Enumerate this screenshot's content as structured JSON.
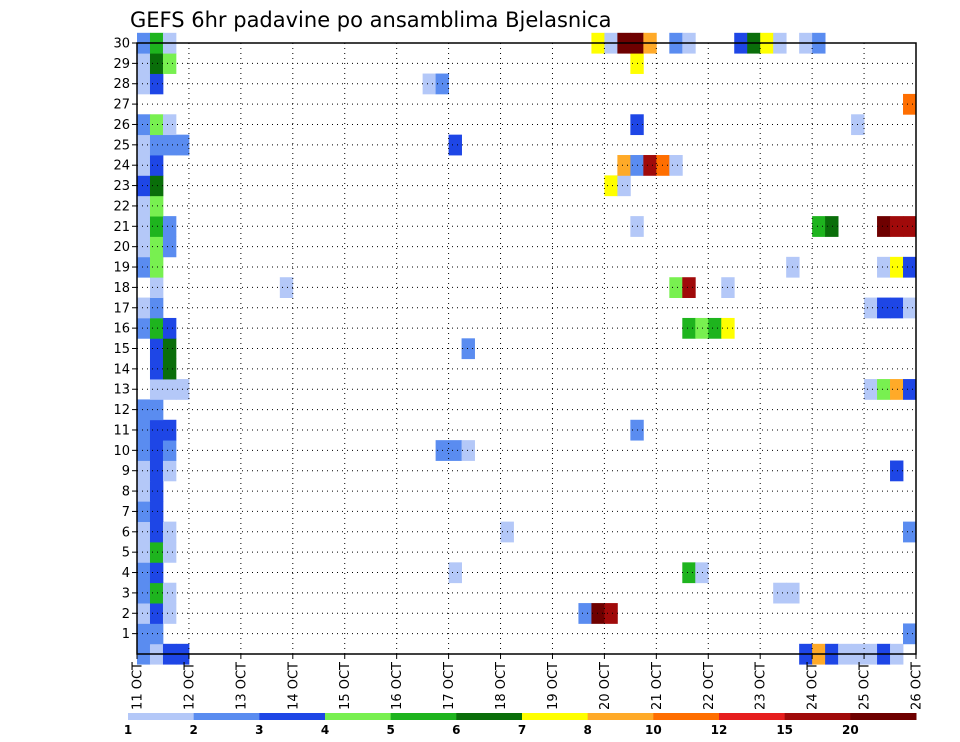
{
  "chart_data": {
    "type": "heatmap",
    "title": "GEFS 6hr padavine po ansamblima Bjelasnica",
    "xlabel": "",
    "ylabel": "",
    "x_ticks": [
      "11 OCT",
      "12 OCT",
      "13 OCT",
      "14 OCT",
      "15 OCT",
      "16 OCT",
      "17 OCT",
      "18 OCT",
      "19 OCT",
      "20 OCT",
      "21 OCT",
      "22 OCT",
      "23 OCT",
      "24 OCT",
      "25 OCT",
      "26 OCT"
    ],
    "xlim": [
      0,
      15
    ],
    "y_ticks": [
      1,
      2,
      3,
      4,
      5,
      6,
      7,
      8,
      9,
      10,
      11,
      12,
      13,
      14,
      15,
      16,
      17,
      18,
      19,
      20,
      21,
      22,
      23,
      24,
      25,
      26,
      27,
      28,
      29,
      30
    ],
    "ylim": [
      0,
      30
    ],
    "grid": true,
    "legend": {
      "placement": "bottom",
      "bins": [
        1,
        2,
        3,
        4,
        5,
        6,
        7,
        8,
        10,
        12,
        15,
        20
      ],
      "colors": [
        "#b4c8f8",
        "#5a8cf0",
        "#1e46e6",
        "#78f050",
        "#1eb41e",
        "#0a6e0a",
        "#ffff00",
        "#ffaa28",
        "#ff6e00",
        "#e61e1e",
        "#a00a0a",
        "#6e0000"
      ],
      "labels": [
        "1",
        "2",
        "3",
        "4",
        "5",
        "6",
        "7",
        "8",
        "10",
        "12",
        "15",
        "20"
      ]
    },
    "cells": [
      [
        0.0,
        0,
        2
      ],
      [
        0.25,
        0,
        1
      ],
      [
        0.5,
        0,
        3
      ],
      [
        0.75,
        0,
        3
      ],
      [
        12.75,
        0,
        3
      ],
      [
        13.0,
        0,
        8
      ],
      [
        13.25,
        0,
        3
      ],
      [
        13.5,
        0,
        1
      ],
      [
        13.75,
        0,
        1
      ],
      [
        14.0,
        0,
        1
      ],
      [
        14.25,
        0,
        3
      ],
      [
        14.5,
        0,
        1
      ],
      [
        0.0,
        1,
        2
      ],
      [
        0.25,
        1,
        2
      ],
      [
        14.75,
        1,
        2
      ],
      [
        0.0,
        2,
        1
      ],
      [
        0.25,
        2,
        3
      ],
      [
        0.5,
        2,
        1
      ],
      [
        8.5,
        2,
        2
      ],
      [
        8.75,
        2,
        20
      ],
      [
        9.0,
        2,
        15
      ],
      [
        0.0,
        3,
        2
      ],
      [
        0.25,
        3,
        5
      ],
      [
        0.5,
        3,
        1
      ],
      [
        12.25,
        3,
        1
      ],
      [
        12.5,
        3,
        1
      ],
      [
        0.0,
        4,
        2
      ],
      [
        0.25,
        4,
        3
      ],
      [
        6.0,
        4,
        1
      ],
      [
        10.5,
        4,
        5
      ],
      [
        10.75,
        4,
        1
      ],
      [
        0.0,
        5,
        1
      ],
      [
        0.25,
        5,
        5
      ],
      [
        0.5,
        5,
        1
      ],
      [
        0.0,
        6,
        1
      ],
      [
        0.25,
        6,
        3
      ],
      [
        0.5,
        6,
        1
      ],
      [
        7.0,
        6,
        1
      ],
      [
        14.75,
        6,
        2
      ],
      [
        0.0,
        7,
        2
      ],
      [
        0.25,
        7,
        3
      ],
      [
        0.0,
        8,
        1
      ],
      [
        0.25,
        8,
        3
      ],
      [
        0.0,
        9,
        1
      ],
      [
        0.25,
        9,
        3
      ],
      [
        0.5,
        9,
        1
      ],
      [
        14.5,
        9,
        3
      ],
      [
        0.0,
        10,
        2
      ],
      [
        0.25,
        10,
        3
      ],
      [
        0.5,
        10,
        2
      ],
      [
        5.75,
        10,
        2
      ],
      [
        6.0,
        10,
        2
      ],
      [
        6.25,
        10,
        1
      ],
      [
        0.0,
        11,
        2
      ],
      [
        0.25,
        11,
        3
      ],
      [
        0.5,
        11,
        3
      ],
      [
        9.5,
        11,
        2
      ],
      [
        0.0,
        12,
        2
      ],
      [
        0.25,
        12,
        2
      ],
      [
        0.25,
        13,
        1
      ],
      [
        0.5,
        13,
        1
      ],
      [
        0.75,
        13,
        1
      ],
      [
        14.0,
        13,
        1
      ],
      [
        14.25,
        13,
        4
      ],
      [
        14.5,
        13,
        8
      ],
      [
        14.75,
        13,
        3
      ],
      [
        0.25,
        14,
        3
      ],
      [
        0.5,
        14,
        6
      ],
      [
        0.25,
        15,
        3
      ],
      [
        0.5,
        15,
        6
      ],
      [
        6.25,
        15,
        2
      ],
      [
        0.0,
        16,
        2
      ],
      [
        0.25,
        16,
        5
      ],
      [
        0.5,
        16,
        3
      ],
      [
        10.5,
        16,
        5
      ],
      [
        10.75,
        16,
        4
      ],
      [
        11.0,
        16,
        5
      ],
      [
        11.25,
        16,
        7
      ],
      [
        0.0,
        17,
        1
      ],
      [
        0.25,
        17,
        2
      ],
      [
        14.0,
        17,
        1
      ],
      [
        14.25,
        17,
        3
      ],
      [
        14.5,
        17,
        3
      ],
      [
        14.75,
        17,
        1
      ],
      [
        0.25,
        18,
        1
      ],
      [
        2.75,
        18,
        1
      ],
      [
        10.25,
        18,
        4
      ],
      [
        10.5,
        18,
        15
      ],
      [
        11.25,
        18,
        1
      ],
      [
        0.0,
        19,
        2
      ],
      [
        0.25,
        19,
        4
      ],
      [
        12.5,
        19,
        1
      ],
      [
        14.25,
        19,
        1
      ],
      [
        14.5,
        19,
        7
      ],
      [
        14.75,
        19,
        3
      ],
      [
        0.0,
        20,
        1
      ],
      [
        0.25,
        20,
        4
      ],
      [
        0.5,
        20,
        2
      ],
      [
        0.0,
        21,
        1
      ],
      [
        0.25,
        21,
        5
      ],
      [
        0.5,
        21,
        2
      ],
      [
        9.5,
        21,
        1
      ],
      [
        13.0,
        21,
        5
      ],
      [
        13.25,
        21,
        6
      ],
      [
        14.25,
        21,
        20
      ],
      [
        14.5,
        21,
        15
      ],
      [
        14.75,
        21,
        15
      ],
      [
        0.0,
        22,
        1
      ],
      [
        0.25,
        22,
        4
      ],
      [
        0.0,
        23,
        3
      ],
      [
        0.25,
        23,
        6
      ],
      [
        9.0,
        23,
        7
      ],
      [
        9.25,
        23,
        1
      ],
      [
        0.0,
        24,
        1
      ],
      [
        0.25,
        24,
        3
      ],
      [
        9.25,
        24,
        8
      ],
      [
        9.5,
        24,
        2
      ],
      [
        9.75,
        24,
        15
      ],
      [
        10.0,
        24,
        10
      ],
      [
        10.25,
        24,
        1
      ],
      [
        0.0,
        25,
        1
      ],
      [
        0.25,
        25,
        2
      ],
      [
        0.5,
        25,
        2
      ],
      [
        0.75,
        25,
        2
      ],
      [
        6.0,
        25,
        3
      ],
      [
        0.0,
        26,
        2
      ],
      [
        0.25,
        26,
        4
      ],
      [
        0.5,
        26,
        1
      ],
      [
        9.5,
        26,
        3
      ],
      [
        13.75,
        26,
        1
      ],
      [
        14.75,
        27,
        10
      ],
      [
        0.0,
        28,
        1
      ],
      [
        0.25,
        28,
        3
      ],
      [
        5.5,
        28,
        1
      ],
      [
        5.75,
        28,
        2
      ],
      [
        0.0,
        29,
        1
      ],
      [
        0.25,
        29,
        6
      ],
      [
        0.5,
        29,
        4
      ],
      [
        9.5,
        29,
        7
      ],
      [
        0.0,
        30,
        2
      ],
      [
        0.25,
        30,
        5
      ],
      [
        0.5,
        30,
        1
      ],
      [
        8.75,
        30,
        7
      ],
      [
        9.0,
        30,
        1
      ],
      [
        9.25,
        30,
        20
      ],
      [
        9.5,
        30,
        20
      ],
      [
        9.75,
        30,
        8
      ],
      [
        10.25,
        30,
        2
      ],
      [
        10.5,
        30,
        1
      ],
      [
        11.5,
        30,
        3
      ],
      [
        11.75,
        30,
        6
      ],
      [
        12.0,
        30,
        7
      ],
      [
        12.25,
        30,
        1
      ],
      [
        12.75,
        30,
        1
      ],
      [
        13.0,
        30,
        2
      ]
    ]
  }
}
